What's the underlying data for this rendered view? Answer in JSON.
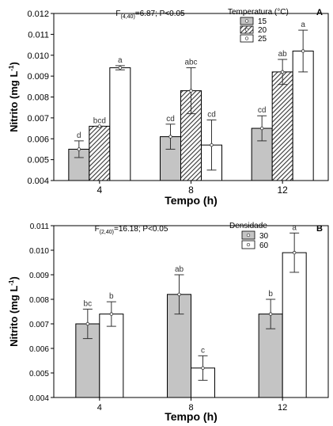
{
  "chart_data": [
    {
      "type": "bar",
      "panel_label": "A",
      "stat_text": "F(4,40)=6.87; P<0.05",
      "stat_main": "F",
      "stat_sub": "(4,40)",
      "stat_rest": "=6.87; P<0.05",
      "xlabel": "Tempo (h)",
      "ylabel_main": "Nitrito (mg L",
      "ylabel_sup": "-1",
      "ylabel_end": ")",
      "legend_title": "Temperatura (°C)",
      "legend_placement": "top-right",
      "categories": [
        "4",
        "8",
        "12"
      ],
      "ylim": [
        0.004,
        0.012
      ],
      "yticks": [
        "0.004",
        "0.005",
        "0.006",
        "0.007",
        "0.008",
        "0.009",
        "0.010",
        "0.011",
        "0.012"
      ],
      "series": [
        {
          "name": "15",
          "fill": "gray",
          "values": [
            0.0055,
            0.0061,
            0.0065
          ],
          "errors": [
            0.0004,
            0.0006,
            0.0006
          ],
          "letters": [
            "d",
            "cd",
            "cd"
          ]
        },
        {
          "name": "20",
          "fill": "hatch",
          "values": [
            0.0066,
            0.0083,
            0.0092
          ],
          "errors": [
            0.0,
            0.0011,
            0.0006
          ],
          "letters": [
            "bcd",
            "abc",
            "ab"
          ]
        },
        {
          "name": "25",
          "fill": "white",
          "values": [
            0.0094,
            0.0057,
            0.0102
          ],
          "errors": [
            0.0001,
            0.0012,
            0.001
          ],
          "letters": [
            "a",
            "cd",
            "a"
          ]
        }
      ]
    },
    {
      "type": "bar",
      "panel_label": "B",
      "stat_text": "F(2,40)=16.18; P<0.05",
      "stat_main": "F",
      "stat_sub": "(2,40)",
      "stat_rest": "=16.18; P<0.05",
      "xlabel": "Tempo (h)",
      "ylabel_main": "Nitrito (mg L",
      "ylabel_sup": "-1",
      "ylabel_end": ")",
      "legend_title": "Densidade",
      "legend_placement": "top-right",
      "categories": [
        "4",
        "8",
        "12"
      ],
      "ylim": [
        0.004,
        0.011
      ],
      "yticks": [
        "0.004",
        "0.005",
        "0.006",
        "0.007",
        "0.008",
        "0.009",
        "0.010",
        "0.011"
      ],
      "series": [
        {
          "name": "30",
          "fill": "gray",
          "values": [
            0.007,
            0.0082,
            0.0074
          ],
          "errors": [
            0.0006,
            0.0008,
            0.0006
          ],
          "letters": [
            "bc",
            "ab",
            "b"
          ]
        },
        {
          "name": "60",
          "fill": "white",
          "values": [
            0.0074,
            0.0052,
            0.0099
          ],
          "errors": [
            0.0005,
            0.0005,
            0.0008
          ],
          "letters": [
            "b",
            "c",
            "a"
          ]
        }
      ]
    }
  ]
}
